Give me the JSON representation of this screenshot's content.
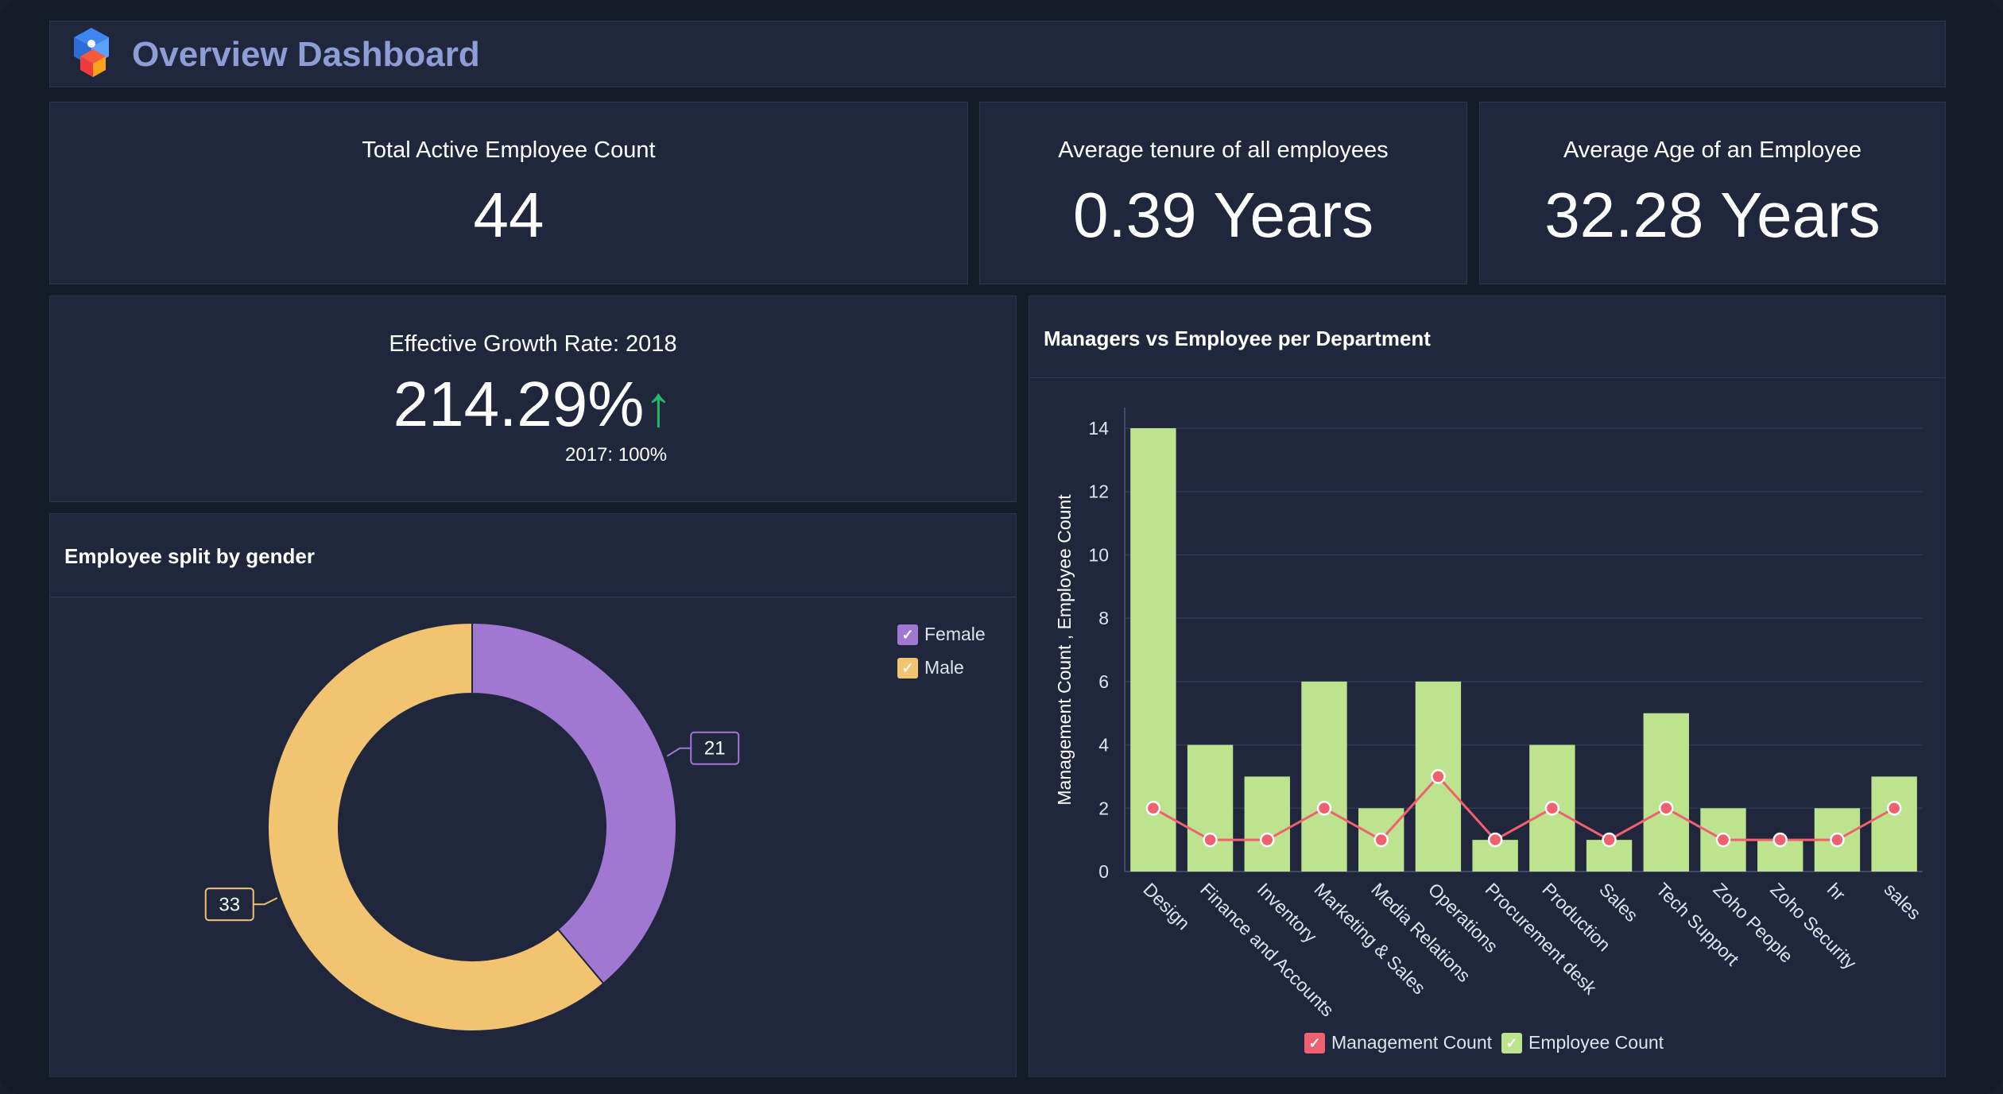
{
  "header": {
    "title": "Overview Dashboard",
    "logo_icon": "cube-logo-icon"
  },
  "kpis": [
    {
      "label": "Total Active Employee Count",
      "value": "44"
    },
    {
      "label": "Average tenure of all employees",
      "value": "0.39 Years"
    },
    {
      "label": "Average Age of an Employee",
      "value": "32.28 Years"
    }
  ],
  "growth": {
    "label": "Effective Growth Rate: 2018",
    "value": "214.29%",
    "arrow": "↑",
    "previous": "2017: 100%",
    "arrow_color": "#21b868"
  },
  "gender_chart": {
    "title": "Employee split by gender",
    "check": "✓",
    "colors": {
      "female": "#a078d2",
      "male": "#f2c370"
    }
  },
  "dept_chart": {
    "title": "Managers vs Employee per Department",
    "check": "✓",
    "colors": {
      "bar": "#bde38f",
      "line": "#f0606f"
    }
  },
  "chart_data": [
    {
      "type": "pie",
      "title": "Employee split by gender",
      "categories": [
        "Female",
        "Male"
      ],
      "values": [
        21,
        33
      ],
      "donut": true,
      "legend": "top-right"
    },
    {
      "type": "bar",
      "title": "Managers vs Employee per Department",
      "ylabel": "Management Count , Employee Count",
      "ylim": [
        0,
        14
      ],
      "yticks": [
        0,
        2,
        4,
        6,
        8,
        10,
        12,
        14
      ],
      "grid": true,
      "legend": "bottom",
      "categories": [
        "Design",
        "Finance and Accounts",
        "Inventory",
        "Marketing & Sales",
        "Media Relations",
        "Operations",
        "Procurement desk",
        "Production",
        "Sales",
        "Tech Support",
        "Zoho People",
        "Zoho Security",
        "hr",
        "sales"
      ],
      "series": [
        {
          "name": "Employee Count",
          "type": "bar",
          "values": [
            14,
            4,
            3,
            6,
            2,
            6,
            1,
            4,
            1,
            5,
            2,
            1,
            2,
            3
          ]
        },
        {
          "name": "Management Count",
          "type": "line",
          "values": [
            2,
            1,
            1,
            2,
            1,
            3,
            1,
            2,
            1,
            2,
            1,
            1,
            1,
            2
          ]
        }
      ]
    }
  ]
}
